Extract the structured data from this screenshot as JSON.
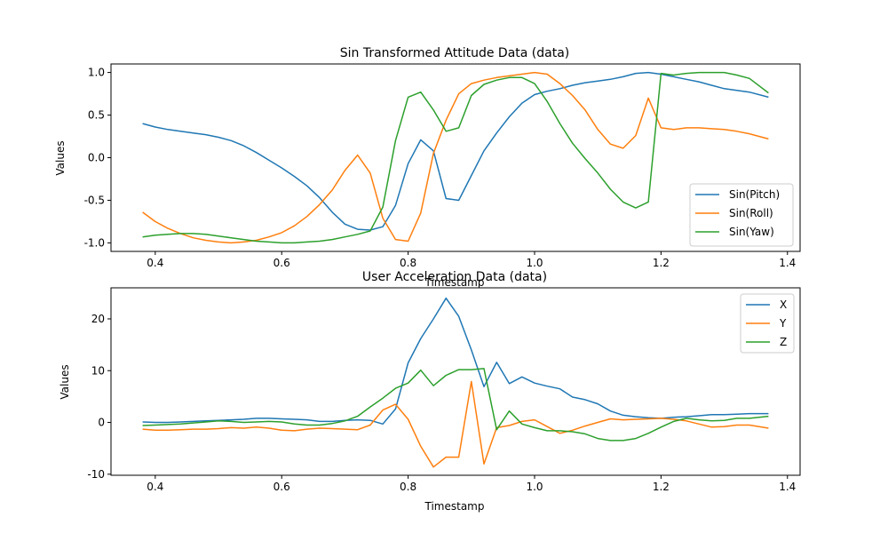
{
  "chart_data": [
    {
      "type": "line",
      "title": "Sin Transformed Attitude Data (data)",
      "xlabel": "Timestamp",
      "ylabel": "Values",
      "xlim": [
        0.33,
        1.42
      ],
      "ylim": [
        -1.1,
        1.1
      ],
      "xticks": [
        "0.4",
        "0.6",
        "0.8",
        "1.0",
        "1.2",
        "1.4"
      ],
      "yticks": [
        "-1.0",
        "-0.5",
        "0.0",
        "0.5",
        "1.0"
      ],
      "grid": false,
      "legend_position": "lower-right",
      "x": [
        0.38,
        0.4,
        0.42,
        0.44,
        0.46,
        0.48,
        0.5,
        0.52,
        0.54,
        0.56,
        0.58,
        0.6,
        0.62,
        0.64,
        0.66,
        0.68,
        0.7,
        0.72,
        0.74,
        0.76,
        0.78,
        0.8,
        0.82,
        0.84,
        0.86,
        0.88,
        0.9,
        0.92,
        0.94,
        0.96,
        0.98,
        1.0,
        1.02,
        1.04,
        1.06,
        1.08,
        1.1,
        1.12,
        1.14,
        1.16,
        1.18,
        1.2,
        1.22,
        1.24,
        1.26,
        1.28,
        1.3,
        1.32,
        1.34,
        1.37
      ],
      "series": [
        {
          "name": "Sin(Pitch)",
          "color": "#1f77b4",
          "values": [
            0.4,
            0.36,
            0.33,
            0.31,
            0.29,
            0.27,
            0.24,
            0.2,
            0.14,
            0.06,
            -0.03,
            -0.12,
            -0.22,
            -0.33,
            -0.47,
            -0.64,
            -0.78,
            -0.84,
            -0.85,
            -0.81,
            -0.56,
            -0.07,
            0.21,
            0.08,
            -0.48,
            -0.5,
            -0.21,
            0.08,
            0.29,
            0.48,
            0.64,
            0.74,
            0.78,
            0.81,
            0.85,
            0.88,
            0.9,
            0.92,
            0.95,
            0.99,
            1.0,
            0.98,
            0.95,
            0.92,
            0.89,
            0.85,
            0.81,
            0.79,
            0.77,
            0.71
          ]
        },
        {
          "name": "Sin(Roll)",
          "color": "#ff7f0e",
          "values": [
            -0.64,
            -0.75,
            -0.83,
            -0.89,
            -0.94,
            -0.97,
            -0.99,
            -1.0,
            -0.99,
            -0.97,
            -0.93,
            -0.88,
            -0.8,
            -0.69,
            -0.55,
            -0.38,
            -0.15,
            0.03,
            -0.18,
            -0.71,
            -0.96,
            -0.98,
            -0.65,
            0.05,
            0.44,
            0.75,
            0.87,
            0.91,
            0.94,
            0.96,
            0.98,
            1.0,
            0.98,
            0.87,
            0.73,
            0.56,
            0.33,
            0.16,
            0.11,
            0.26,
            0.7,
            0.35,
            0.33,
            0.35,
            0.35,
            0.34,
            0.33,
            0.31,
            0.28,
            0.22
          ]
        },
        {
          "name": "Sin(Yaw)",
          "color": "#2ca02c",
          "values": [
            -0.93,
            -0.91,
            -0.9,
            -0.89,
            -0.89,
            -0.9,
            -0.92,
            -0.94,
            -0.96,
            -0.98,
            -0.99,
            -1.0,
            -1.0,
            -0.99,
            -0.98,
            -0.96,
            -0.93,
            -0.9,
            -0.86,
            -0.58,
            0.2,
            0.71,
            0.77,
            0.56,
            0.31,
            0.35,
            0.73,
            0.86,
            0.91,
            0.94,
            0.94,
            0.87,
            0.66,
            0.4,
            0.17,
            -0.01,
            -0.18,
            -0.37,
            -0.52,
            -0.59,
            -0.52,
            0.99,
            0.97,
            0.99,
            1.0,
            1.0,
            1.0,
            0.97,
            0.93,
            0.76
          ]
        }
      ]
    },
    {
      "type": "line",
      "title": "User Acceleration Data (data)",
      "xlabel": "Timestamp",
      "ylabel": "Values",
      "xlim": [
        0.33,
        1.42
      ],
      "ylim": [
        -10.2,
        26.0
      ],
      "xticks": [
        "0.4",
        "0.6",
        "0.8",
        "1.0",
        "1.2",
        "1.4"
      ],
      "yticks": [
        "-10",
        "0",
        "10",
        "20"
      ],
      "grid": false,
      "legend_position": "upper-right",
      "x": [
        0.38,
        0.4,
        0.42,
        0.44,
        0.46,
        0.48,
        0.5,
        0.52,
        0.54,
        0.56,
        0.58,
        0.6,
        0.62,
        0.64,
        0.66,
        0.68,
        0.7,
        0.72,
        0.74,
        0.76,
        0.78,
        0.8,
        0.82,
        0.84,
        0.86,
        0.88,
        0.9,
        0.92,
        0.94,
        0.96,
        0.98,
        1.0,
        1.02,
        1.04,
        1.06,
        1.08,
        1.1,
        1.12,
        1.14,
        1.16,
        1.18,
        1.2,
        1.22,
        1.24,
        1.26,
        1.28,
        1.3,
        1.32,
        1.34,
        1.37
      ],
      "series": [
        {
          "name": "X",
          "color": "#1f77b4",
          "values": [
            0.1,
            0.0,
            0.0,
            0.1,
            0.2,
            0.3,
            0.4,
            0.5,
            0.6,
            0.8,
            0.8,
            0.7,
            0.6,
            0.5,
            0.2,
            0.2,
            0.4,
            0.5,
            0.4,
            -0.3,
            2.6,
            11.5,
            16.2,
            20.0,
            24.0,
            20.5,
            14.0,
            6.9,
            11.6,
            7.5,
            8.8,
            7.6,
            7.0,
            6.5,
            4.9,
            4.4,
            3.6,
            2.2,
            1.4,
            1.1,
            0.9,
            0.8,
            1.0,
            1.1,
            1.3,
            1.5,
            1.5,
            1.6,
            1.7,
            1.7
          ]
        },
        {
          "name": "Y",
          "color": "#ff7f0e",
          "values": [
            -1.3,
            -1.5,
            -1.5,
            -1.4,
            -1.3,
            -1.3,
            -1.2,
            -1.0,
            -1.1,
            -0.9,
            -1.1,
            -1.5,
            -1.6,
            -1.3,
            -1.1,
            -1.2,
            -1.3,
            -1.4,
            -0.5,
            2.4,
            3.5,
            0.6,
            -4.6,
            -8.6,
            -6.7,
            -6.7,
            7.9,
            -8.0,
            -1.0,
            -0.6,
            0.2,
            0.5,
            -0.8,
            -2.1,
            -1.5,
            -0.7,
            0.0,
            0.7,
            0.5,
            0.6,
            0.7,
            0.8,
            0.6,
            0.3,
            -0.3,
            -0.9,
            -0.8,
            -0.5,
            -0.5,
            -1.1
          ]
        },
        {
          "name": "Z",
          "color": "#2ca02c",
          "values": [
            -0.6,
            -0.5,
            -0.4,
            -0.3,
            -0.1,
            0.1,
            0.3,
            0.2,
            0.0,
            0.1,
            0.2,
            0.1,
            -0.3,
            -0.5,
            -0.5,
            -0.2,
            0.3,
            1.2,
            3.0,
            4.7,
            6.6,
            7.6,
            10.1,
            7.1,
            9.1,
            10.2,
            10.2,
            10.4,
            -1.4,
            2.2,
            -0.3,
            -1.0,
            -1.6,
            -1.6,
            -1.8,
            -2.2,
            -3.1,
            -3.5,
            -3.5,
            -3.1,
            -2.1,
            -0.9,
            0.2,
            0.8,
            0.5,
            0.3,
            0.4,
            0.8,
            0.8,
            1.2
          ]
        }
      ]
    }
  ]
}
